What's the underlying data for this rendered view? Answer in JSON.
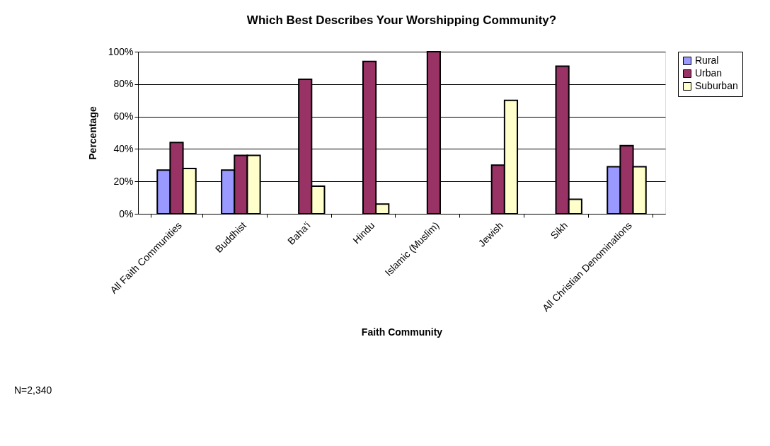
{
  "chart_data": {
    "type": "bar",
    "title": "Which Best Describes Your Worshipping Community?",
    "xlabel": "Faith Community",
    "ylabel": "Percentage",
    "categories": [
      "All Faith Communities",
      "Buddhist",
      "Baha'i",
      "Hindu",
      "Islamic (Muslim)",
      "Jewish",
      "Sikh",
      "All Christian Denominations"
    ],
    "series": [
      {
        "name": "Rural",
        "color": "#9999ff",
        "values": [
          27,
          27,
          null,
          null,
          null,
          null,
          null,
          29
        ]
      },
      {
        "name": "Urban",
        "color": "#993366",
        "values": [
          44,
          36,
          83,
          94,
          100,
          30,
          91,
          42
        ]
      },
      {
        "name": "Suburban",
        "color": "#ffffcc",
        "values": [
          28,
          36,
          17,
          6,
          null,
          70,
          9,
          29
        ]
      }
    ],
    "ylim": [
      0,
      100
    ],
    "yticks": [
      {
        "value": 0,
        "label": "0%"
      },
      {
        "value": 20,
        "label": "20%"
      },
      {
        "value": 40,
        "label": "40%"
      },
      {
        "value": 60,
        "label": "60%"
      },
      {
        "value": 80,
        "label": "80%"
      },
      {
        "value": 100,
        "label": "100%"
      }
    ],
    "grid": "y",
    "legend": "right",
    "annotations": [
      "N=2,340"
    ]
  }
}
